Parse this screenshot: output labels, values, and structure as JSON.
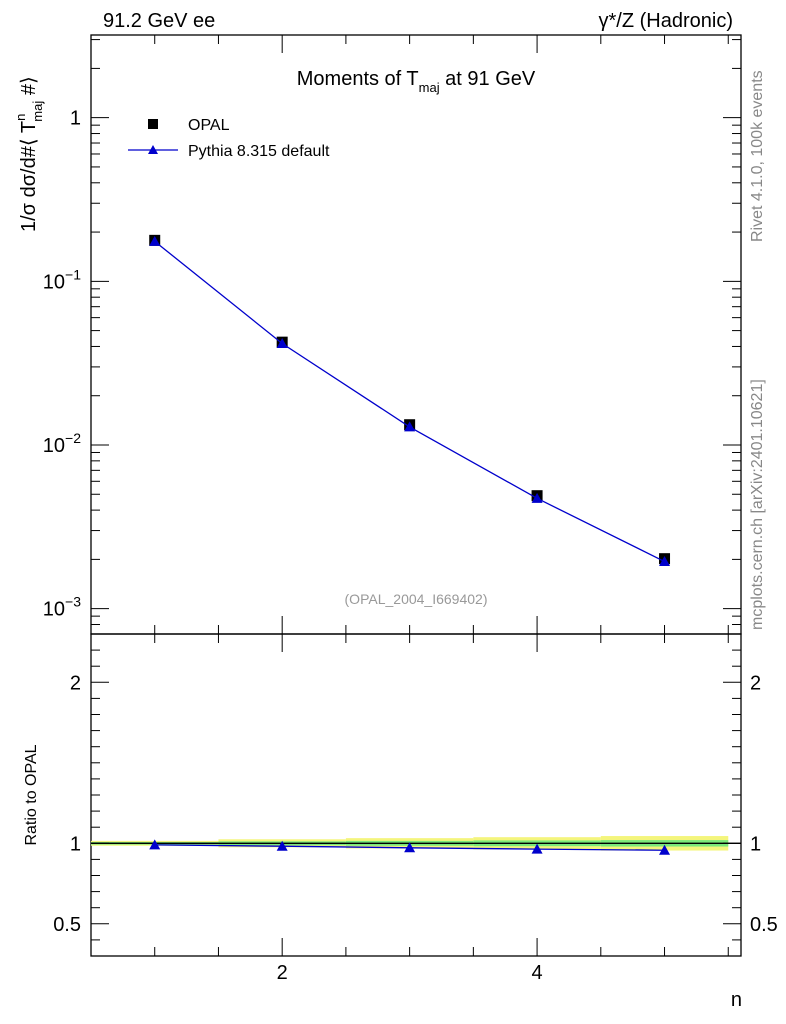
{
  "header": {
    "left": "91.2 GeV ee",
    "right": "γ*/Z (Hadronic)"
  },
  "side_labels": {
    "rivet": "Rivet 4.1.0,  100k events",
    "mcplots": "mcplots.cern.ch [arXiv:2401.10621]"
  },
  "chart_data": [
    {
      "type": "scatter",
      "title": "Moments of T_maj at 91 GeV",
      "title_main": "Moments of T",
      "title_sub": "maj",
      "title_tail": " at 91 GeV",
      "ylabel": "1/σ  dσ/d#⟨ T^n_maj #⟩",
      "ylabel_main": "1/σ  dσ/d#⟨ T",
      "ylabel_sup": "n",
      "ylabel_sub": "maj",
      "ylabel_tail": " #⟩",
      "yscale": "log",
      "ylim": [
        0.0007,
        3.2
      ],
      "xlim": [
        0.5,
        5.6
      ],
      "y_ticks": [
        {
          "value": 0.001,
          "base": "10",
          "exp": "−3"
        },
        {
          "value": 0.01,
          "base": "10",
          "exp": "−2"
        },
        {
          "value": 0.1,
          "base": "10",
          "exp": "−1"
        },
        {
          "value": 1,
          "label": "1"
        }
      ],
      "watermark": "(OPAL_2004_I669402)",
      "legend_position": "top-left",
      "series": [
        {
          "name": "OPAL",
          "marker": "square",
          "color": "#000000",
          "x": [
            1,
            2,
            3,
            4,
            5
          ],
          "y": [
            0.178,
            0.0425,
            0.0133,
            0.0049,
            0.00202
          ]
        },
        {
          "name": "Pythia 8.315 default",
          "marker": "triangle",
          "color": "#0000cc",
          "line": true,
          "x": [
            1,
            2,
            3,
            4,
            5
          ],
          "y": [
            0.1755,
            0.0417,
            0.0129,
            0.00472,
            0.00194
          ]
        }
      ]
    },
    {
      "type": "line",
      "ylabel": "Ratio to OPAL",
      "xlabel": "n",
      "ylim": [
        0.3,
        2.3
      ],
      "xlim": [
        0.5,
        5.6
      ],
      "x_ticks": [
        2,
        4
      ],
      "x_tick_labels": [
        "2",
        "4"
      ],
      "y_ticks": [
        0.5,
        1,
        2
      ],
      "y_tick_labels": [
        "0.5",
        "1",
        "2"
      ],
      "band_colors": {
        "inner": "#7ae87a",
        "outer": "#f4f57c"
      },
      "bands": [
        {
          "x0": 0.5,
          "x1": 1.5,
          "inner": [
            0.992,
            1.008
          ],
          "outer": [
            0.985,
            1.015
          ]
        },
        {
          "x0": 1.5,
          "x1": 2.5,
          "inner": [
            0.988,
            1.012
          ],
          "outer": [
            0.975,
            1.025
          ]
        },
        {
          "x0": 2.5,
          "x1": 3.5,
          "inner": [
            0.985,
            1.015
          ],
          "outer": [
            0.968,
            1.032
          ]
        },
        {
          "x0": 3.5,
          "x1": 4.5,
          "inner": [
            0.982,
            1.018
          ],
          "outer": [
            0.962,
            1.038
          ]
        },
        {
          "x0": 4.5,
          "x1": 5.5,
          "inner": [
            0.98,
            1.02
          ],
          "outer": [
            0.955,
            1.045
          ]
        }
      ],
      "series": [
        {
          "name": "Pythia 8.315 default",
          "marker": "triangle",
          "color": "#0000cc",
          "x": [
            1,
            2,
            3,
            4,
            5
          ],
          "y": [
            0.99,
            0.982,
            0.972,
            0.964,
            0.957
          ]
        }
      ]
    }
  ]
}
